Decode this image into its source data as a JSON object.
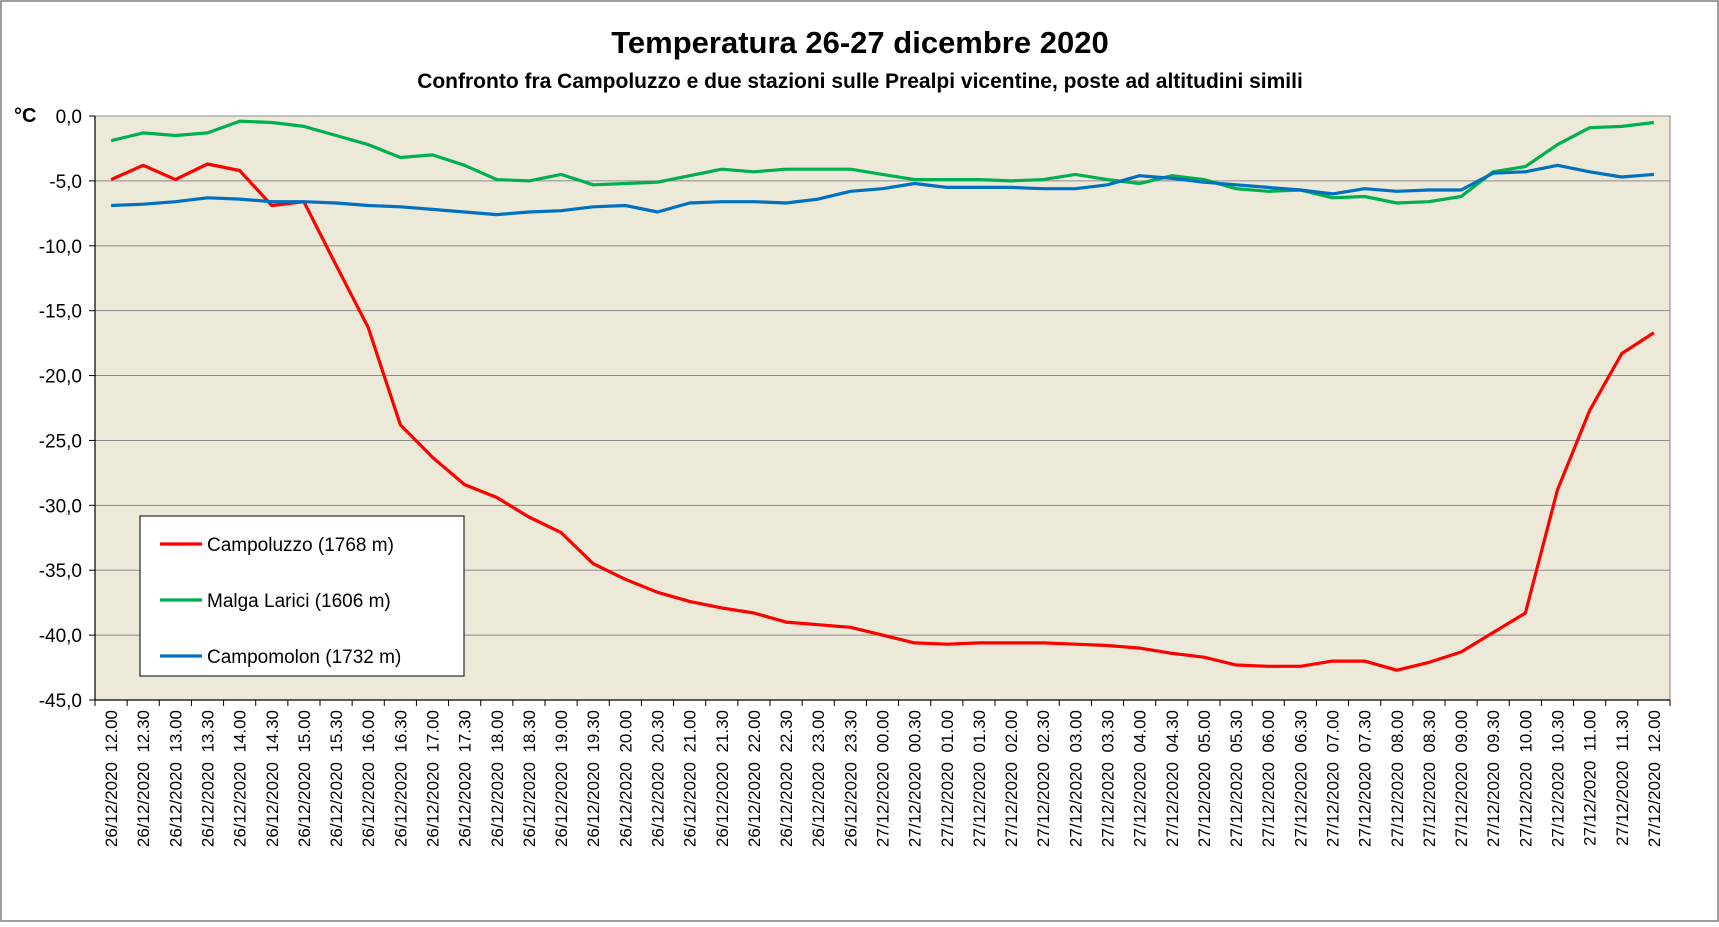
{
  "chart_data": {
    "type": "line",
    "title": "Temperatura 26-27 dicembre 2020",
    "subtitle": "Confronto fra Campoluzzo e due stazioni sulle Prealpi vicentine, poste ad altitudini simili",
    "ylabel": "°C",
    "ylim": [
      -45,
      0
    ],
    "yticks": [
      0,
      -5,
      -10,
      -15,
      -20,
      -25,
      -30,
      -35,
      -40,
      -45
    ],
    "ytick_labels": [
      "0,0",
      "-5,0",
      "-10,0",
      "-15,0",
      "-20,0",
      "-25,0",
      "-30,0",
      "-35,0",
      "-40,0",
      "-45,0"
    ],
    "grid": true,
    "legend_position": "bottom-left",
    "plot_background": "#ECE9D8",
    "categories": [
      "26/12/2020  12.00",
      "26/12/2020  12.30",
      "26/12/2020  13.00",
      "26/12/2020  13.30",
      "26/12/2020  14.00",
      "26/12/2020  14.30",
      "26/12/2020  15.00",
      "26/12/2020  15.30",
      "26/12/2020  16.00",
      "26/12/2020  16.30",
      "26/12/2020  17.00",
      "26/12/2020  17.30",
      "26/12/2020  18.00",
      "26/12/2020  18.30",
      "26/12/2020  19.00",
      "26/12/2020  19.30",
      "26/12/2020  20.00",
      "26/12/2020  20.30",
      "26/12/2020  21.00",
      "26/12/2020  21.30",
      "26/12/2020  22.00",
      "26/12/2020  22.30",
      "26/12/2020  23.00",
      "26/12/2020  23.30",
      "27/12/2020  00.00",
      "27/12/2020  00.30",
      "27/12/2020  01.00",
      "27/12/2020  01.30",
      "27/12/2020  02.00",
      "27/12/2020  02.30",
      "27/12/2020  03.00",
      "27/12/2020  03.30",
      "27/12/2020  04.00",
      "27/12/2020  04.30",
      "27/12/2020  05.00",
      "27/12/2020  05.30",
      "27/12/2020  06.00",
      "27/12/2020  06.30",
      "27/12/2020  07.00",
      "27/12/2020  07.30",
      "27/12/2020  08.00",
      "27/12/2020  08.30",
      "27/12/2020  09.00",
      "27/12/2020  09.30",
      "27/12/2020  10.00",
      "27/12/2020  10.30",
      "27/12/2020  11.00",
      "27/12/2020  11.30",
      "27/12/2020  12.00"
    ],
    "series": [
      {
        "name": "Campoluzzo (1768 m)",
        "color": "#FF0000",
        "values": [
          -4.9,
          -3.8,
          -4.9,
          -3.7,
          -4.2,
          -6.9,
          -6.6,
          -11.5,
          -16.3,
          -23.8,
          -26.3,
          -28.4,
          -29.4,
          -30.9,
          -32.1,
          -34.5,
          -35.7,
          -36.7,
          -37.4,
          -37.9,
          -38.3,
          -39.0,
          -39.2,
          -39.4,
          -40.0,
          -40.6,
          -40.7,
          -40.6,
          -40.6,
          -40.6,
          -40.7,
          -40.8,
          -41.0,
          -41.4,
          -41.7,
          -42.3,
          -42.4,
          -42.4,
          -42.0,
          -42.0,
          -42.7,
          -42.1,
          -41.3,
          -39.8,
          -38.3,
          -28.8,
          -22.7,
          -18.3,
          -16.7
        ]
      },
      {
        "name": "Malga Larici (1606 m)",
        "color": "#00B050",
        "values": [
          -1.9,
          -1.3,
          -1.5,
          -1.3,
          -0.4,
          -0.5,
          -0.8,
          -1.5,
          -2.2,
          -3.2,
          -3.0,
          -3.8,
          -4.9,
          -5.0,
          -4.5,
          -5.3,
          -5.2,
          -5.1,
          -4.6,
          -4.1,
          -4.3,
          -4.1,
          -4.1,
          -4.1,
          -4.5,
          -4.9,
          -4.9,
          -4.9,
          -5.0,
          -4.9,
          -4.5,
          -4.9,
          -5.2,
          -4.6,
          -4.9,
          -5.6,
          -5.8,
          -5.7,
          -6.3,
          -6.2,
          -6.7,
          -6.6,
          -6.2,
          -4.3,
          -3.9,
          -2.2,
          -0.9,
          -0.8,
          -0.5
        ]
      },
      {
        "name": "Campomolon (1732 m)",
        "color": "#0070C0",
        "values": [
          -6.9,
          -6.8,
          -6.6,
          -6.3,
          -6.4,
          -6.6,
          -6.6,
          -6.7,
          -6.9,
          -7.0,
          -7.2,
          -7.4,
          -7.6,
          -7.4,
          -7.3,
          -7.0,
          -6.9,
          -7.4,
          -6.7,
          -6.6,
          -6.6,
          -6.7,
          -6.4,
          -5.8,
          -5.6,
          -5.2,
          -5.5,
          -5.5,
          -5.5,
          -5.6,
          -5.6,
          -5.3,
          -4.6,
          -4.8,
          -5.1,
          -5.3,
          -5.5,
          -5.7,
          -6.0,
          -5.6,
          -5.8,
          -5.7,
          -5.7,
          -4.4,
          -4.3,
          -3.8,
          -4.3,
          -4.7,
          -4.5
        ]
      }
    ]
  }
}
